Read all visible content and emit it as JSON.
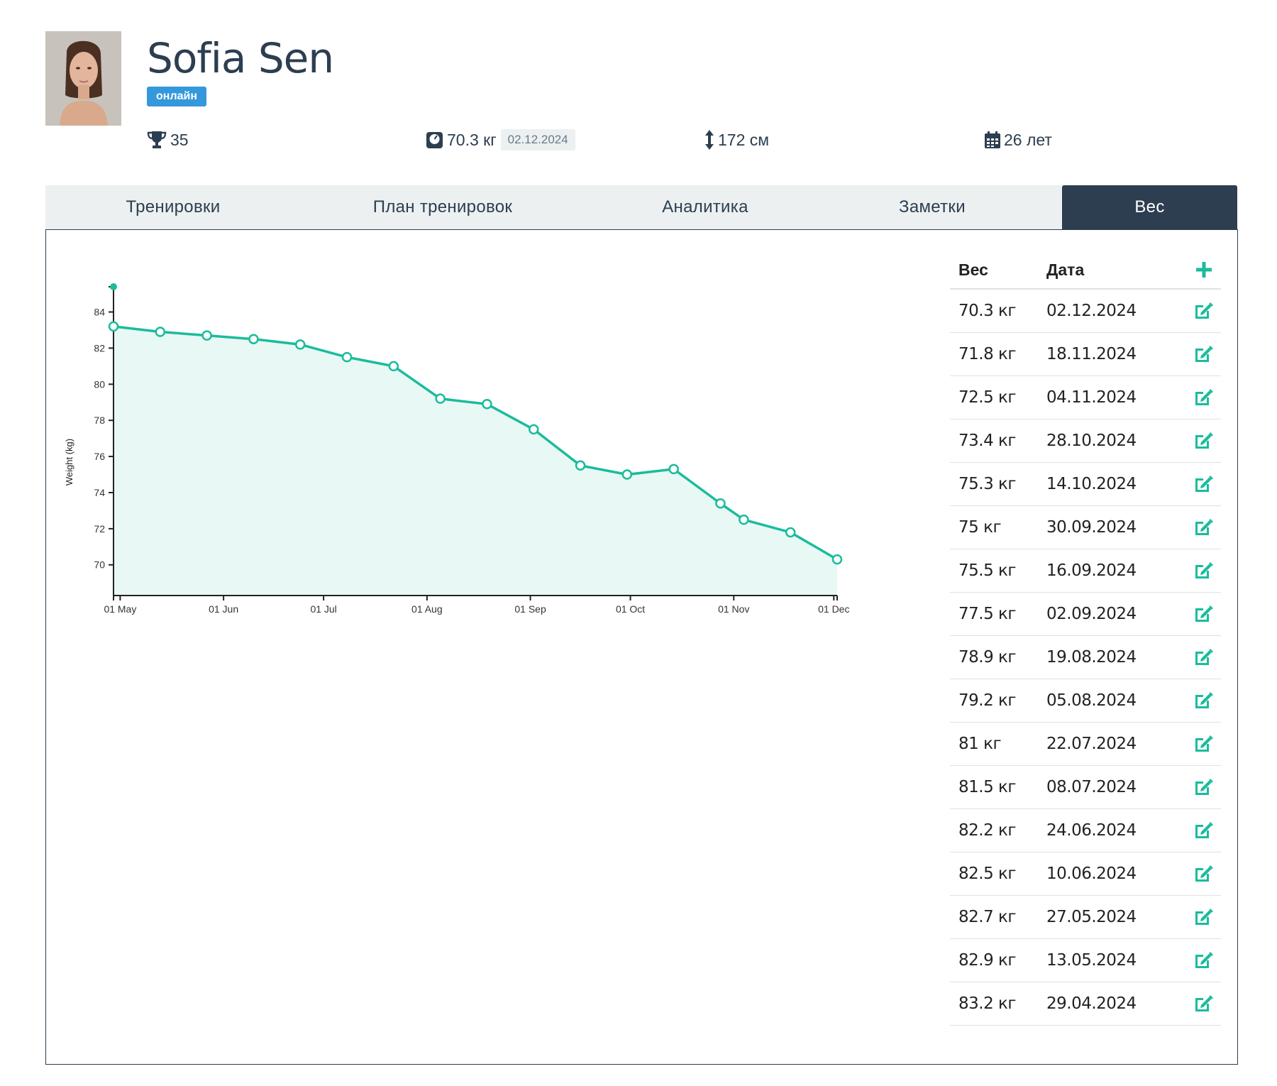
{
  "profile": {
    "name": "Sofia Sen",
    "status": "онлайн",
    "trophies": "35",
    "weight": "70.3 кг",
    "weight_date": "02.12.2024",
    "height": "172 см",
    "age": "26 лет"
  },
  "tabs": [
    {
      "label": "Тренировки"
    },
    {
      "label": "План тренировок"
    },
    {
      "label": "Аналитика"
    },
    {
      "label": "Заметки"
    },
    {
      "label": "Вес"
    }
  ],
  "active_tab": "Вес",
  "table": {
    "col_weight": "Вес",
    "col_date": "Дата",
    "rows": [
      {
        "weight": "70.3 кг",
        "date": "02.12.2024"
      },
      {
        "weight": "71.8 кг",
        "date": "18.11.2024"
      },
      {
        "weight": "72.5 кг",
        "date": "04.11.2024"
      },
      {
        "weight": "73.4 кг",
        "date": "28.10.2024"
      },
      {
        "weight": "75.3 кг",
        "date": "14.10.2024"
      },
      {
        "weight": "75 кг",
        "date": "30.09.2024"
      },
      {
        "weight": "75.5 кг",
        "date": "16.09.2024"
      },
      {
        "weight": "77.5 кг",
        "date": "02.09.2024"
      },
      {
        "weight": "78.9 кг",
        "date": "19.08.2024"
      },
      {
        "weight": "79.2 кг",
        "date": "05.08.2024"
      },
      {
        "weight": "81 кг",
        "date": "22.07.2024"
      },
      {
        "weight": "81.5 кг",
        "date": "08.07.2024"
      },
      {
        "weight": "82.2 кг",
        "date": "24.06.2024"
      },
      {
        "weight": "82.5 кг",
        "date": "10.06.2024"
      },
      {
        "weight": "82.7 кг",
        "date": "27.05.2024"
      },
      {
        "weight": "82.9 кг",
        "date": "13.05.2024"
      },
      {
        "weight": "83.2 кг",
        "date": "29.04.2024"
      }
    ]
  },
  "colors": {
    "accent": "#1abc9c",
    "fill": "#e8f8f5",
    "dark": "#2c3e50",
    "badge": "#3498db"
  },
  "chart_data": {
    "type": "area",
    "ylabel": "Weight (kg)",
    "xlabel": "",
    "x": [
      "2024-04-29",
      "2024-05-13",
      "2024-05-27",
      "2024-06-10",
      "2024-06-24",
      "2024-07-08",
      "2024-07-22",
      "2024-08-05",
      "2024-08-19",
      "2024-09-02",
      "2024-09-16",
      "2024-09-30",
      "2024-10-14",
      "2024-10-28",
      "2024-11-04",
      "2024-11-18",
      "2024-12-02"
    ],
    "series": [
      {
        "values": [
          83.2,
          82.9,
          82.7,
          82.5,
          82.2,
          81.5,
          81,
          79.2,
          78.9,
          77.5,
          75.5,
          75,
          75.3,
          73.4,
          72.5,
          71.8,
          70.3
        ]
      }
    ],
    "x_ticks": [
      {
        "date": "2024-05-01",
        "label": "01 May"
      },
      {
        "date": "2024-06-01",
        "label": "01 Jun"
      },
      {
        "date": "2024-07-01",
        "label": "01 Jul"
      },
      {
        "date": "2024-08-01",
        "label": "01 Aug"
      },
      {
        "date": "2024-09-01",
        "label": "01 Sep"
      },
      {
        "date": "2024-10-01",
        "label": "01 Oct"
      },
      {
        "date": "2024-11-01",
        "label": "01 Nov"
      },
      {
        "date": "2024-12-01",
        "label": "01 Dec"
      }
    ],
    "y_ticks": [
      70,
      72,
      74,
      76,
      78,
      80,
      82,
      84
    ],
    "ylim": [
      68.3,
      85.2
    ],
    "xlim": [
      "2024-04-29",
      "2024-12-02"
    ],
    "grid": false,
    "legend": "none"
  }
}
